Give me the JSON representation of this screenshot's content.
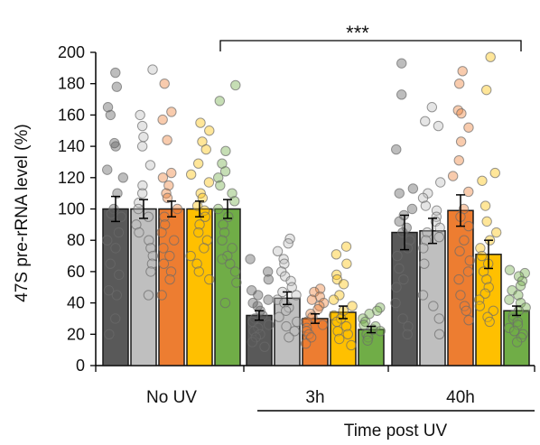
{
  "chart_data": {
    "type": "bar",
    "title": "",
    "ylabel": "47S pre-rRNA level (%)",
    "xlabel": "Time post UV",
    "ylim": [
      0,
      200
    ],
    "yticks": [
      0,
      20,
      40,
      60,
      80,
      100,
      120,
      140,
      160,
      180,
      200
    ],
    "grid": false,
    "categories": [
      "No UV",
      "3h",
      "40h"
    ],
    "series": [
      {
        "color": "#595959",
        "values": [
          100,
          32,
          85
        ],
        "errors": [
          8,
          3,
          11
        ]
      },
      {
        "color": "#bfbfbf",
        "values": [
          100,
          43,
          86
        ],
        "errors": [
          6,
          4,
          8
        ]
      },
      {
        "color": "#ed7d31",
        "values": [
          100,
          30,
          99
        ],
        "errors": [
          5,
          3,
          10
        ]
      },
      {
        "color": "#ffc000",
        "values": [
          100,
          34,
          71
        ],
        "errors": [
          5,
          4,
          9
        ]
      },
      {
        "color": "#70ad47",
        "values": [
          100,
          23,
          35
        ],
        "errors": [
          6,
          2,
          3
        ]
      }
    ],
    "points": [
      [
        [
          187,
          178,
          165,
          160,
          142,
          140,
          125,
          120,
          110,
          100,
          97,
          95,
          85,
          80,
          75,
          65,
          58,
          48,
          45,
          30,
          20
        ],
        [
          68,
          60,
          55,
          48,
          45,
          42,
          40,
          38,
          35,
          32,
          30,
          28,
          26,
          24,
          22,
          20,
          18,
          15,
          12
        ],
        [
          193,
          173,
          138,
          113,
          110,
          100,
          96,
          92,
          88,
          85,
          80,
          75,
          70,
          62,
          55,
          50,
          40,
          30,
          25,
          20
        ]
      ],
      [
        [
          189,
          160,
          153,
          146,
          140,
          128,
          115,
          110,
          104,
          100,
          95,
          90,
          85,
          80,
          75,
          70,
          65,
          60,
          45
        ],
        [
          81,
          78,
          73,
          68,
          65,
          60,
          57,
          54,
          50,
          47,
          45,
          42,
          40,
          37,
          35,
          31,
          28,
          25,
          22,
          18
        ],
        [
          165,
          156,
          153,
          117,
          110,
          107,
          102,
          99,
          95,
          92,
          88,
          85,
          82,
          80,
          75,
          65,
          45,
          38,
          30,
          20
        ]
      ],
      [
        [
          180,
          162,
          157,
          144,
          123,
          120,
          115,
          110,
          107,
          100,
          95,
          90,
          85,
          80,
          75,
          70,
          65,
          60,
          55,
          45
        ],
        [
          49,
          47,
          44,
          42,
          40,
          38,
          36,
          33,
          31,
          28,
          26,
          24,
          22,
          20,
          18,
          14
        ],
        [
          188,
          180,
          163,
          161,
          152,
          143,
          131,
          121,
          111,
          100,
          95,
          89,
          80,
          73,
          67,
          60,
          55,
          45,
          38,
          35,
          29
        ]
      ],
      [
        [
          155,
          150,
          143,
          138,
          129,
          122,
          117,
          110,
          107,
          102,
          99,
          95,
          90,
          85,
          80,
          75,
          70,
          65,
          60,
          55
        ],
        [
          76,
          71,
          65,
          58,
          55,
          52,
          45,
          42,
          38,
          35,
          32,
          30,
          28,
          25,
          22,
          20,
          17,
          13
        ],
        [
          197,
          176,
          123,
          118,
          102,
          92,
          85,
          80,
          75,
          70,
          65,
          60,
          55,
          50,
          46,
          42,
          38,
          35,
          31,
          28
        ]
      ],
      [
        [
          179,
          169,
          137,
          129,
          124,
          120,
          115,
          110,
          105,
          100,
          95,
          90,
          85,
          80,
          75,
          70,
          68,
          65,
          60,
          53,
          40
        ],
        [
          37,
          35,
          33,
          30,
          28,
          26,
          25,
          23,
          22,
          20,
          18,
          16
        ],
        [
          61,
          59,
          57,
          54,
          51,
          48,
          45,
          42,
          40,
          37,
          35,
          32,
          30,
          28,
          26,
          24,
          22,
          20,
          18,
          15
        ]
      ]
    ],
    "significance": {
      "from": "No UV",
      "to": "40h",
      "label": "***"
    }
  }
}
